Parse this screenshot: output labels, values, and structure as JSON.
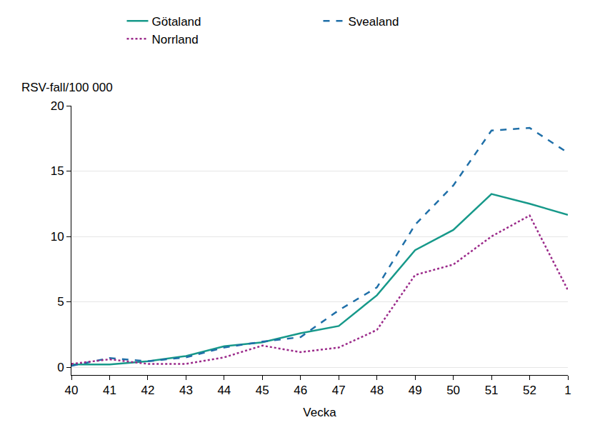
{
  "chart_data": {
    "type": "line",
    "x_label": "Vecka",
    "y_label": "RSV-fall/100 000",
    "categories": [
      "40",
      "41",
      "42",
      "43",
      "44",
      "45",
      "46",
      "47",
      "48",
      "49",
      "50",
      "51",
      "52",
      "1"
    ],
    "series": [
      {
        "name": "Götaland",
        "color": "#17998a",
        "line_style": "solid",
        "values": [
          0.2,
          0.2,
          0.45,
          0.85,
          1.6,
          1.9,
          2.6,
          3.15,
          5.5,
          8.95,
          10.5,
          13.25,
          12.5,
          11.65
        ]
      },
      {
        "name": "Svealand",
        "color": "#1f6fa8",
        "line_style": "dash",
        "values": [
          0.1,
          0.7,
          0.45,
          0.75,
          1.5,
          1.95,
          2.3,
          4.35,
          6.1,
          10.9,
          13.9,
          18.1,
          18.3,
          16.4
        ]
      },
      {
        "name": "Norrland",
        "color": "#9b2a8a",
        "line_style": "dot",
        "values": [
          0.25,
          0.6,
          0.25,
          0.25,
          0.75,
          1.65,
          1.15,
          1.5,
          2.85,
          7.05,
          7.85,
          10.0,
          11.6,
          5.9
        ]
      }
    ],
    "ylim": [
      -0.6,
      20
    ],
    "yticks": [
      0,
      5,
      10,
      15,
      20
    ],
    "grid": true,
    "legend": "top"
  }
}
